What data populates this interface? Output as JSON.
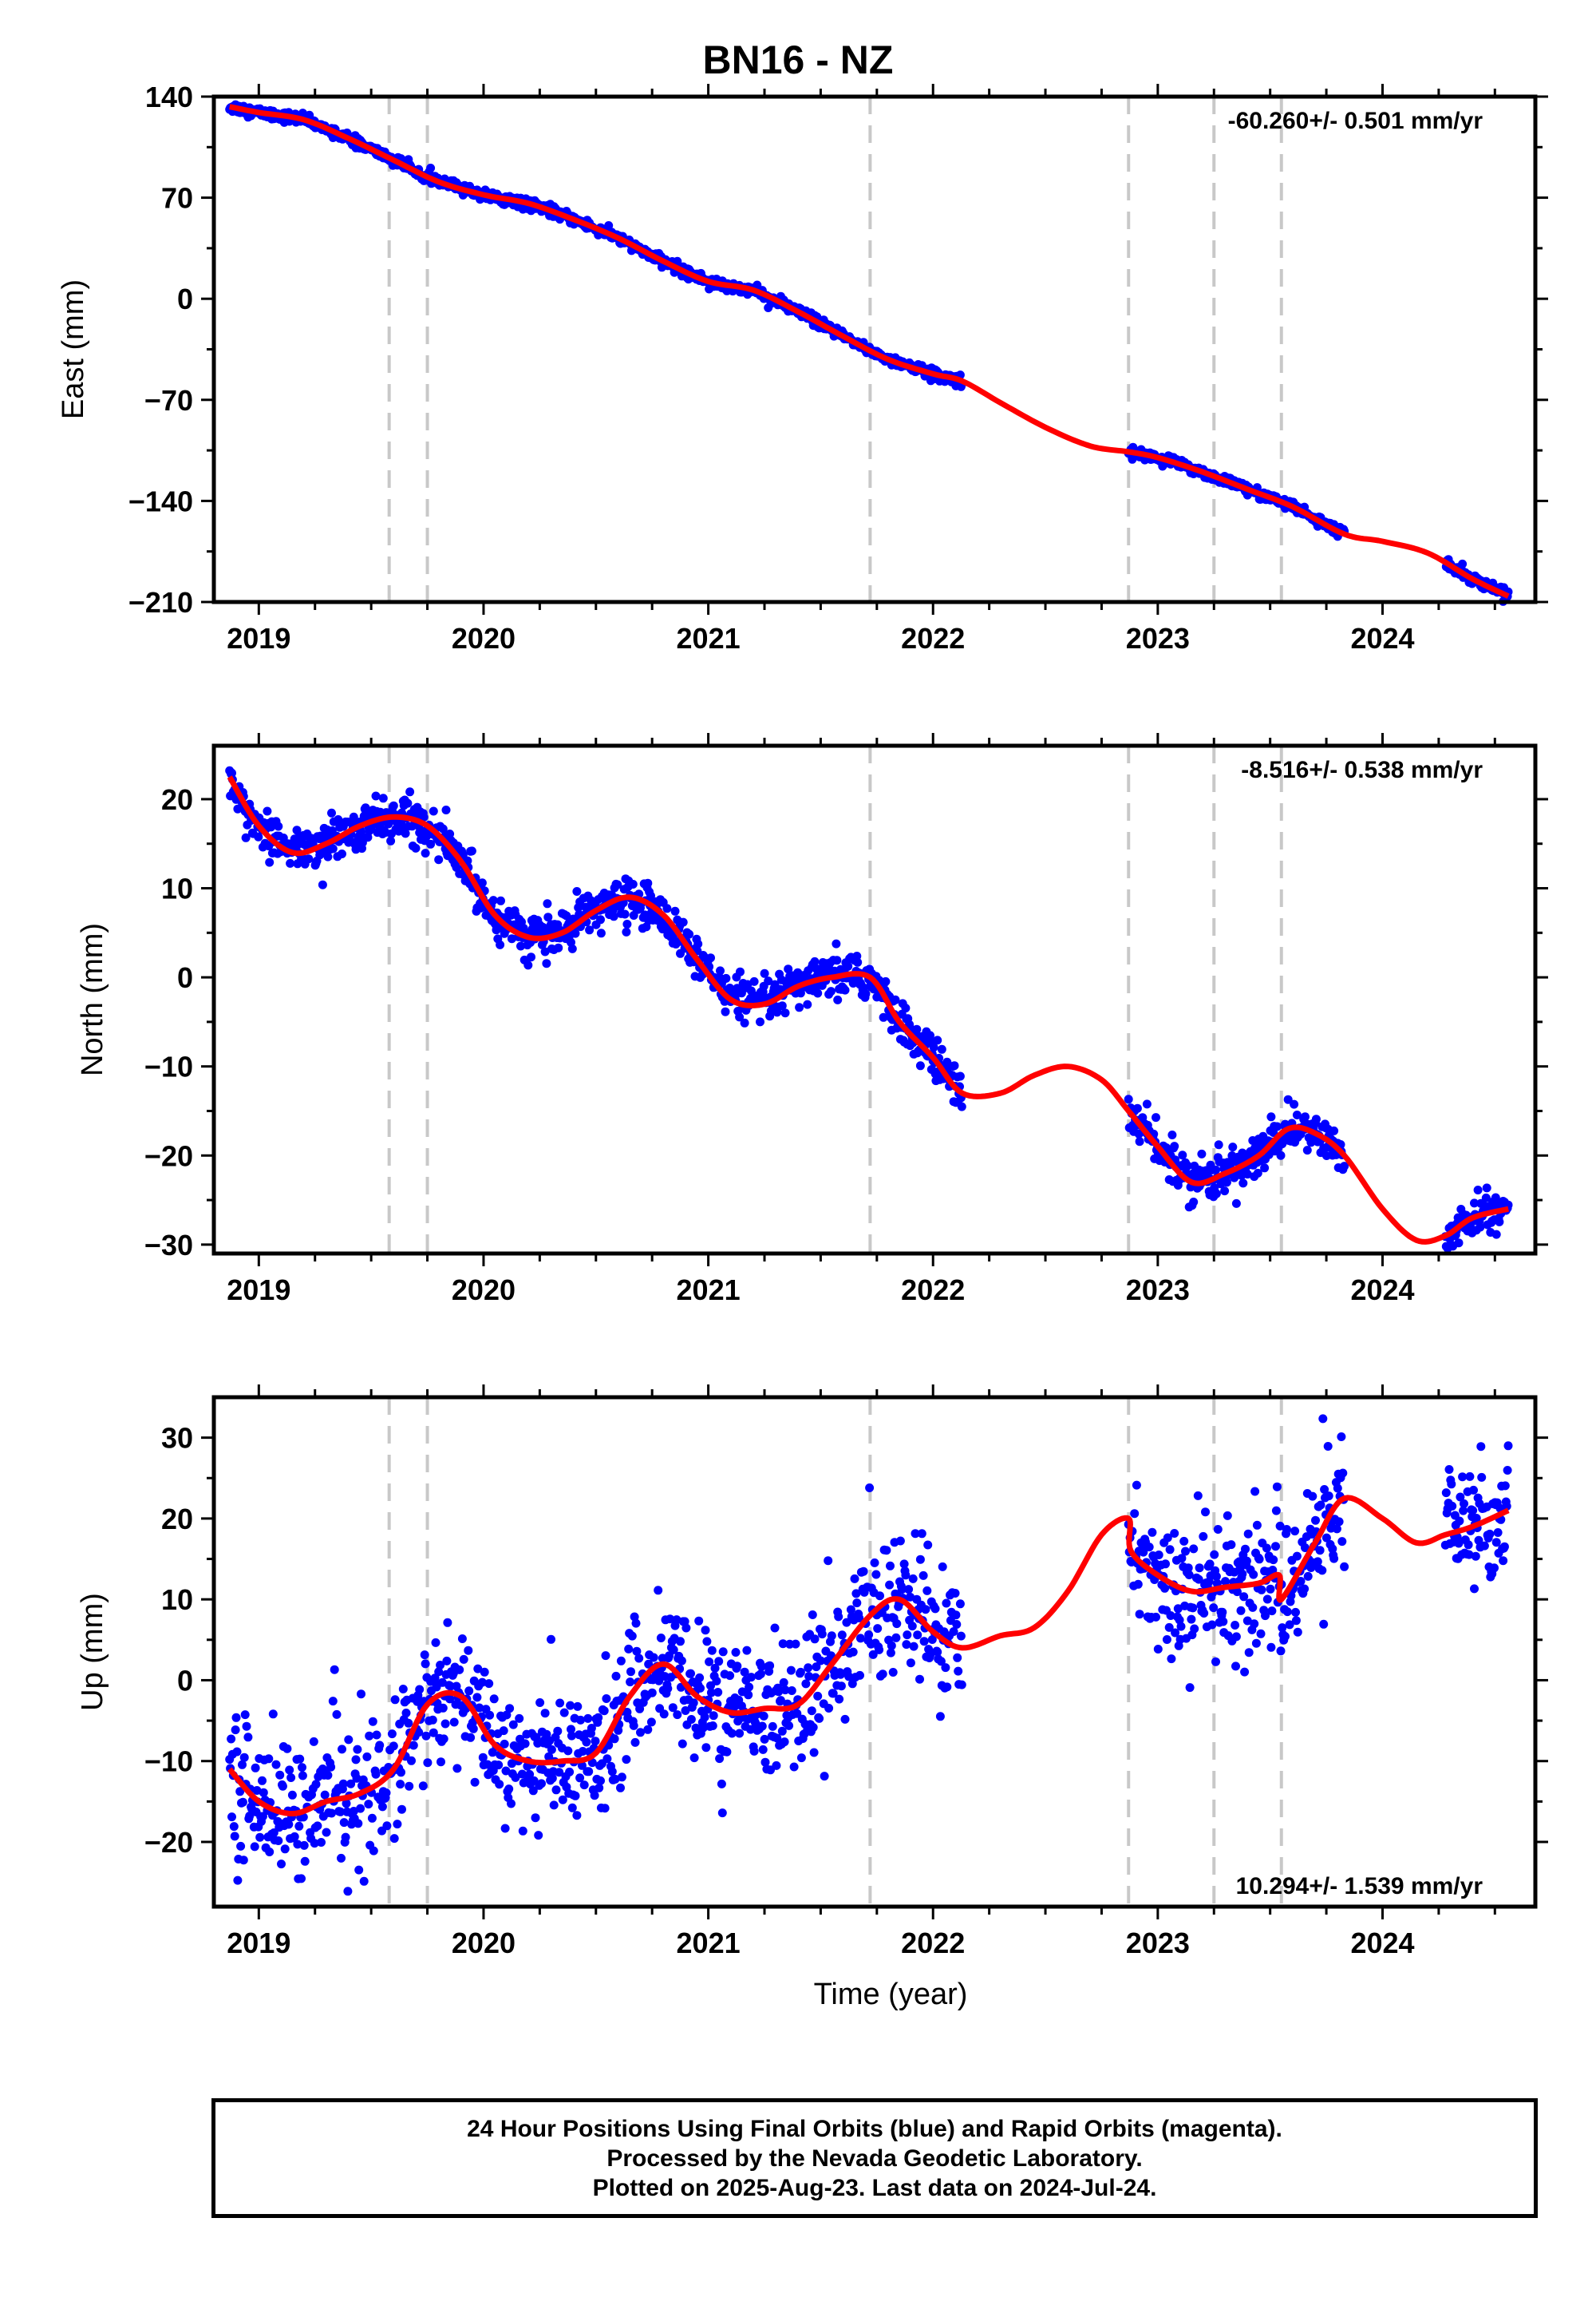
{
  "title": "BN16 - NZ",
  "caption": {
    "line1": "24 Hour Positions Using Final Orbits (blue) and Rapid Orbits (magenta).",
    "line2": "Processed by the Nevada Geodetic Laboratory.",
    "line3": "Plotted on 2025-Aug-23. Last data on 2024-Jul-24."
  },
  "colors": {
    "points": "#0000ff",
    "model": "#ff0000",
    "breaks": "#c8c8c8",
    "frame": "#000000"
  },
  "chart_data": [
    {
      "type": "scatter",
      "ylabel": "East (mm)",
      "xlabel": "",
      "rate_label": "-60.260+/- 0.501 mm/yr",
      "xlim": [
        2018.8,
        2024.68
      ],
      "ylim": [
        -210,
        140
      ],
      "xticks": [
        2019,
        2020,
        2021,
        2022,
        2023,
        2024
      ],
      "yticks": [
        140,
        70,
        0,
        -70,
        -140,
        -210
      ],
      "ytick_labels": [
        "140",
        "70",
        "0",
        "−70",
        "−140",
        "−210"
      ],
      "breaks": [
        2019.58,
        2019.75,
        2021.72,
        2022.87,
        2023.25,
        2023.55
      ],
      "data_spans": [
        [
          2018.87,
          2022.13
        ],
        [
          2022.87,
          2023.83
        ],
        [
          2024.28,
          2024.56
        ]
      ],
      "model": {
        "x": [
          2018.87,
          2019.0,
          2019.2,
          2019.4,
          2019.6,
          2019.8,
          2020.0,
          2020.2,
          2020.4,
          2020.6,
          2020.8,
          2021.0,
          2021.2,
          2021.4,
          2021.6,
          2021.8,
          2022.0,
          2022.13,
          2022.3,
          2022.5,
          2022.7,
          2022.87,
          2023.0,
          2023.2,
          2023.4,
          2023.6,
          2023.83,
          2024.0,
          2024.2,
          2024.4,
          2024.56
        ],
        "y": [
          133,
          129,
          124,
          111,
          96,
          81,
          72,
          66,
          55,
          42,
          26,
          12,
          6,
          -9,
          -26,
          -42,
          -52,
          -57,
          -72,
          -89,
          -102,
          -106,
          -110,
          -120,
          -132,
          -144,
          -163,
          -168,
          -176,
          -194,
          -206
        ]
      },
      "noise_mm": 1.8
    },
    {
      "type": "scatter",
      "ylabel": "North (mm)",
      "xlabel": "",
      "rate_label": "-8.516+/- 0.538 mm/yr",
      "xlim": [
        2018.8,
        2024.68
      ],
      "ylim": [
        -31,
        26
      ],
      "xticks": [
        2019,
        2020,
        2021,
        2022,
        2023,
        2024
      ],
      "yticks": [
        20,
        10,
        0,
        -10,
        -20,
        -30
      ],
      "ytick_labels": [
        "20",
        "10",
        "0",
        "−10",
        "−20",
        "−30"
      ],
      "breaks": [
        2019.58,
        2019.75,
        2021.72,
        2022.87,
        2023.25,
        2023.55
      ],
      "data_spans": [
        [
          2018.87,
          2022.13
        ],
        [
          2022.87,
          2023.83
        ],
        [
          2024.28,
          2024.56
        ]
      ],
      "model": {
        "x": [
          2018.87,
          2019.0,
          2019.15,
          2019.3,
          2019.45,
          2019.6,
          2019.75,
          2019.9,
          2020.05,
          2020.2,
          2020.35,
          2020.5,
          2020.65,
          2020.8,
          2020.95,
          2021.1,
          2021.25,
          2021.4,
          2021.55,
          2021.72,
          2021.85,
          2022.0,
          2022.13,
          2022.3,
          2022.45,
          2022.6,
          2022.75,
          2022.87,
          2023.0,
          2023.15,
          2023.3,
          2023.45,
          2023.58,
          2023.7,
          2023.83,
          2024.0,
          2024.15,
          2024.28,
          2024.4,
          2024.56
        ],
        "y": [
          22.5,
          17,
          14,
          15,
          17,
          18,
          17,
          13,
          7,
          4.5,
          5,
          7.5,
          9,
          7,
          2,
          -2.5,
          -3,
          -1,
          0,
          0,
          -5,
          -9,
          -13,
          -13,
          -11,
          -10,
          -11.5,
          -15,
          -19,
          -23,
          -22,
          -20,
          -17,
          -17.5,
          -20,
          -26,
          -29.5,
          -29,
          -27,
          -26
        ]
      },
      "noise_mm": 1.2
    },
    {
      "type": "scatter",
      "ylabel": "Up (mm)",
      "xlabel": "Time (year)",
      "rate_label": "10.294+/- 1.539 mm/yr",
      "xlim": [
        2018.8,
        2024.68
      ],
      "ylim": [
        -28,
        35
      ],
      "xticks": [
        2019,
        2020,
        2021,
        2022,
        2023,
        2024
      ],
      "yticks": [
        30,
        20,
        10,
        0,
        -10,
        -20
      ],
      "ytick_labels": [
        "30",
        "20",
        "10",
        "0",
        "−10",
        "−20"
      ],
      "breaks": [
        2019.58,
        2019.75,
        2021.72,
        2022.87,
        2023.25,
        2023.55
      ],
      "data_spans": [
        [
          2018.87,
          2022.13
        ],
        [
          2022.87,
          2023.83
        ],
        [
          2024.28,
          2024.56
        ]
      ],
      "model": {
        "x": [
          2018.87,
          2019.0,
          2019.15,
          2019.3,
          2019.45,
          2019.6,
          2019.75,
          2019.9,
          2020.05,
          2020.2,
          2020.35,
          2020.5,
          2020.65,
          2020.8,
          2020.95,
          2021.1,
          2021.25,
          2021.4,
          2021.55,
          2021.72,
          2021.85,
          2022.0,
          2022.13,
          2022.3,
          2022.45,
          2022.6,
          2022.75,
          2022.87,
          2022.88,
          2023.0,
          2023.15,
          2023.3,
          2023.45,
          2023.54,
          2023.55,
          2023.7,
          2023.83,
          2024.0,
          2024.15,
          2024.28,
          2024.4,
          2024.56
        ],
        "y": [
          -11,
          -15,
          -16.5,
          -15,
          -14,
          -11,
          -3,
          -2,
          -8,
          -10,
          -10,
          -9,
          -2,
          2,
          -2,
          -4,
          -3.5,
          -3,
          2,
          8,
          10,
          6,
          4,
          5.5,
          6.5,
          11,
          18,
          20,
          16,
          13,
          11,
          11.5,
          12,
          13,
          10,
          17,
          22.5,
          20,
          17,
          18,
          19,
          21
        ]
      },
      "noise_mm": 4.2
    }
  ]
}
